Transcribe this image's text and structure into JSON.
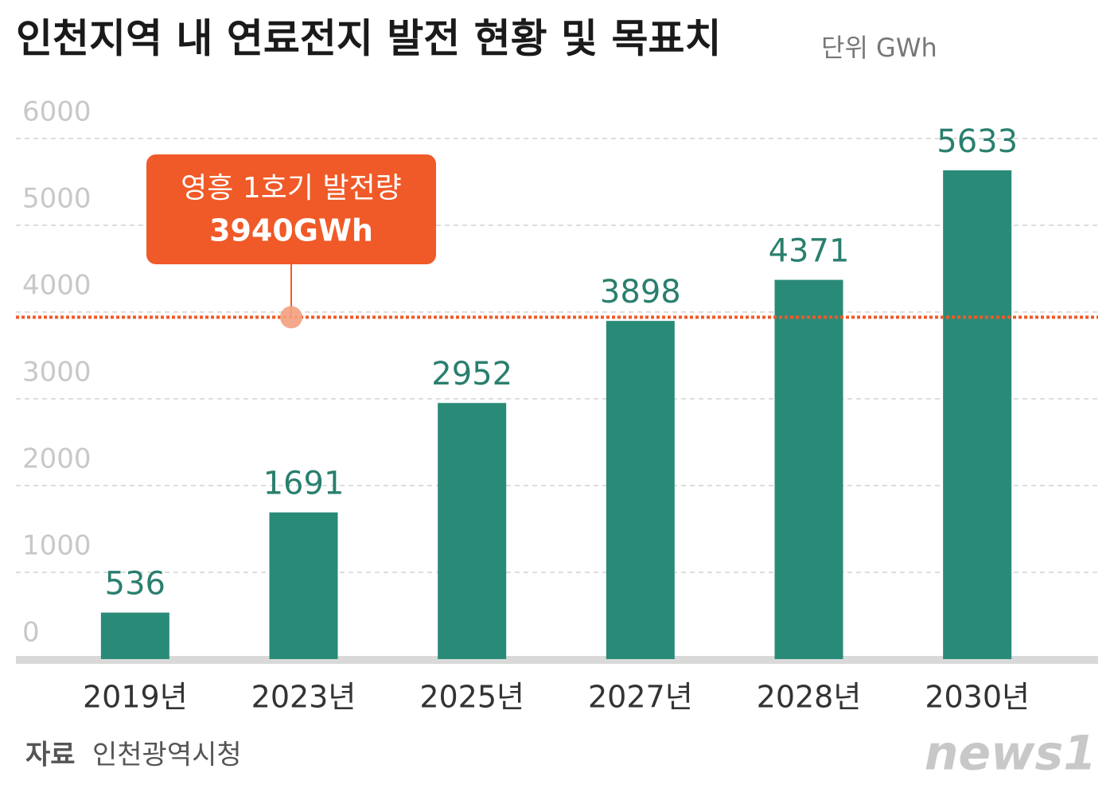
{
  "chart_data": {
    "type": "bar",
    "title": "인천지역 내 연료전지 발전 현황 및 목표치",
    "unit": "단위 GWh",
    "categories": [
      "2019년",
      "2023년",
      "2025년",
      "2027년",
      "2028년",
      "2030년"
    ],
    "values": [
      536,
      1691,
      2952,
      3898,
      4371,
      5633
    ],
    "color": "#2a8a78",
    "ylim": [
      0,
      6000
    ],
    "yticks": [
      0,
      1000,
      2000,
      3000,
      4000,
      5000,
      6000
    ],
    "grid": true,
    "reference": {
      "value": 3940,
      "name": "영흥 1호기 발전량",
      "label": "3940GWh",
      "color": "#f05a28"
    },
    "source_label": "자료",
    "source": "인천광역시청",
    "logo": "news1"
  }
}
